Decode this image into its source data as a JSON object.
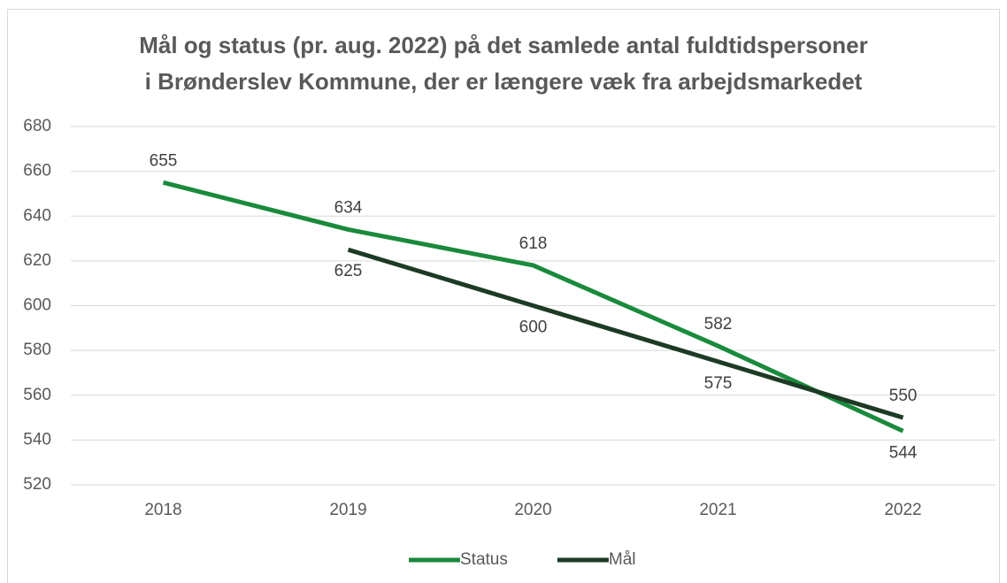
{
  "chart_data": {
    "type": "line",
    "title": [
      "Mål og status (pr. aug. 2022) på det samlede antal fuldtidspersoner",
      "i Brønderslev Kommune, der er længere væk fra arbejdsmarkedet"
    ],
    "categories": [
      "2018",
      "2019",
      "2020",
      "2021",
      "2022"
    ],
    "series": [
      {
        "name": "Status",
        "color": "#1a8a3c",
        "values": [
          655,
          634,
          618,
          582,
          544
        ]
      },
      {
        "name": "Mål",
        "color": "#1d3a24",
        "values": [
          null,
          625,
          600,
          575,
          550
        ]
      }
    ],
    "ylim": [
      520,
      680
    ],
    "yticks": [
      520,
      540,
      560,
      580,
      600,
      620,
      640,
      660,
      680
    ],
    "grid": true,
    "legend": "bottom"
  }
}
